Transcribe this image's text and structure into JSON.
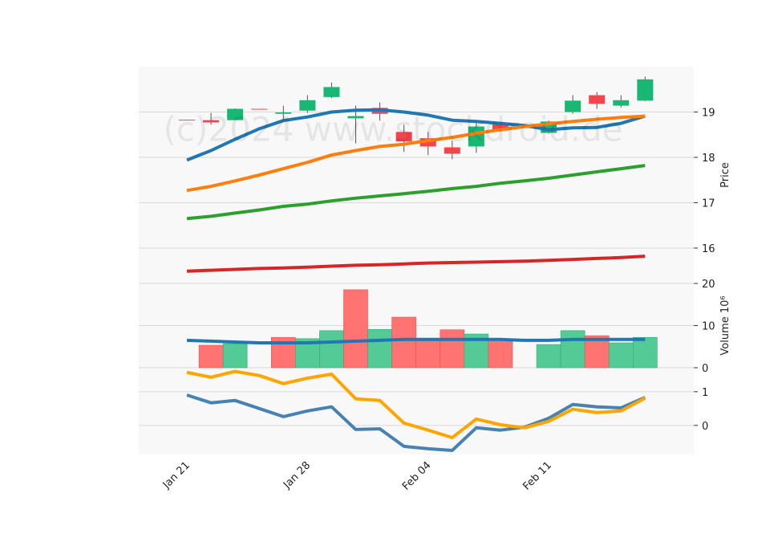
{
  "watermark": "(c)2024 www.stockdroid.de",
  "chart_data": [
    {
      "type": "candlestick",
      "ylabel": "Price",
      "categories": [
        "Jan 21",
        null,
        null,
        null,
        null,
        "Jan 28",
        null,
        null,
        null,
        null,
        "Feb 04",
        null,
        null,
        null,
        null,
        "Feb 11",
        null,
        null,
        null,
        null
      ],
      "open": [
        18.83,
        18.82,
        18.82,
        19.07,
        18.96,
        19.03,
        19.33,
        18.86,
        19.09,
        18.56,
        18.42,
        18.22,
        18.24,
        18.74,
        18.68,
        18.54,
        19.0,
        19.37,
        19.14,
        19.25
      ],
      "high": [
        18.83,
        18.98,
        19.08,
        19.07,
        19.14,
        19.37,
        19.65,
        19.14,
        19.21,
        18.72,
        18.56,
        18.37,
        18.81,
        18.76,
        18.69,
        18.81,
        19.37,
        19.44,
        19.37,
        19.78
      ],
      "low": [
        18.82,
        18.72,
        18.82,
        19.06,
        18.8,
        18.98,
        19.31,
        18.31,
        18.81,
        18.12,
        18.05,
        17.96,
        18.1,
        18.56,
        18.66,
        18.52,
        18.96,
        19.07,
        19.1,
        19.24
      ],
      "close": [
        18.82,
        18.77,
        19.07,
        19.06,
        18.99,
        19.26,
        19.55,
        18.91,
        18.96,
        18.35,
        18.24,
        18.08,
        18.68,
        18.59,
        18.67,
        18.79,
        19.25,
        19.18,
        19.26,
        19.72
      ],
      "up_color": "#19b774",
      "down_color": "#f4444c",
      "series": [
        {
          "color": "#1f77b4",
          "values": [
            17.94,
            18.15,
            18.4,
            18.63,
            18.81,
            18.89,
            19.0,
            19.04,
            19.05,
            19.0,
            18.93,
            18.82,
            18.79,
            18.75,
            18.7,
            18.61,
            18.65,
            18.66,
            18.75,
            18.91
          ]
        },
        {
          "color": "#ff7f0e",
          "values": [
            17.27,
            17.36,
            17.48,
            17.61,
            17.75,
            17.89,
            18.05,
            18.15,
            18.24,
            18.29,
            18.37,
            18.44,
            18.53,
            18.61,
            18.68,
            18.74,
            18.79,
            18.84,
            18.88,
            18.91
          ]
        },
        {
          "color": "#2ca02c",
          "values": [
            16.65,
            16.7,
            16.77,
            16.84,
            16.92,
            16.97,
            17.04,
            17.1,
            17.15,
            17.2,
            17.25,
            17.31,
            17.36,
            17.43,
            17.48,
            17.54,
            17.61,
            17.68,
            17.75,
            17.82
          ]
        },
        {
          "color": "#d62728",
          "values": [
            15.49,
            15.51,
            15.53,
            15.55,
            15.56,
            15.58,
            15.6,
            15.62,
            15.63,
            15.65,
            15.67,
            15.68,
            15.69,
            15.7,
            15.71,
            15.73,
            15.75,
            15.77,
            15.79,
            15.82
          ]
        }
      ],
      "ylim": [
        15.22,
        20.0
      ],
      "yticks": [
        16,
        17,
        18,
        19
      ],
      "grid": true
    },
    {
      "type": "volume",
      "ylabel": "Volume  10⁶",
      "values": [
        null,
        5.33,
        5.7,
        null,
        7.2,
        6.9,
        8.8,
        18.5,
        9.1,
        12.0,
        6.9,
        9.0,
        8.0,
        6.5,
        null,
        5.5,
        8.8,
        7.6,
        5.9,
        7.2
      ],
      "up_color": "#4bc790",
      "down_color": "#ff6b6b",
      "series": [
        {
          "color": "#1f77b4",
          "values": [
            6.5,
            6.3,
            6.1,
            5.9,
            5.9,
            5.9,
            6.1,
            6.3,
            6.5,
            6.7,
            6.7,
            6.7,
            6.7,
            6.7,
            6.5,
            6.5,
            6.7,
            6.7,
            6.7,
            6.7
          ]
        }
      ],
      "ylim": [
        0,
        20
      ],
      "yticks": [
        0,
        10,
        20
      ],
      "grid": true
    },
    {
      "type": "line",
      "series": [
        {
          "color": "#4682b4",
          "values": [
            0.9,
            0.67,
            0.74,
            0.5,
            0.26,
            0.43,
            0.55,
            -0.12,
            -0.1,
            -0.62,
            -0.69,
            -0.74,
            -0.07,
            -0.14,
            -0.05,
            0.21,
            0.62,
            0.55,
            0.52,
            0.83
          ]
        },
        {
          "color": "#ffa500",
          "values": [
            1.57,
            1.43,
            1.6,
            1.48,
            1.24,
            1.4,
            1.52,
            0.79,
            0.74,
            0.07,
            -0.14,
            -0.36,
            0.19,
            0.02,
            -0.07,
            0.12,
            0.48,
            0.38,
            0.43,
            0.81
          ]
        }
      ],
      "ylim": [
        -0.86,
        1.71
      ],
      "yticks": [
        0,
        1
      ],
      "grid": true
    }
  ]
}
